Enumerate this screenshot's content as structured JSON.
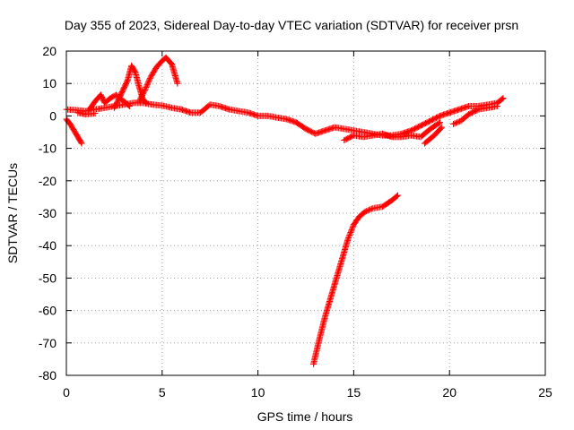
{
  "chart_data": {
    "type": "scatter",
    "title": "Day 355 of 2023, Sidereal Day-to-day VTEC variation (SDTVAR) for receiver prsn",
    "xlabel": "GPS time / hours",
    "ylabel": "SDTVAR / TECUs",
    "xlim": [
      0,
      25
    ],
    "ylim": [
      -80,
      20
    ],
    "xticks": [
      "0",
      "5",
      "10",
      "15",
      "20",
      "25"
    ],
    "yticks": [
      "20",
      "10",
      "0",
      "-10",
      "-20",
      "-30",
      "-40",
      "-50",
      "-60",
      "-70",
      "-80"
    ],
    "grid": true,
    "marker": "+",
    "series_color": "#ff0000",
    "series": [
      {
        "name": "main-track",
        "points": [
          [
            0.0,
            2.0
          ],
          [
            0.5,
            1.8
          ],
          [
            1.0,
            1.5
          ],
          [
            1.5,
            2.0
          ],
          [
            2.0,
            2.5
          ],
          [
            2.5,
            3.0
          ],
          [
            3.0,
            3.5
          ],
          [
            3.5,
            4.0
          ],
          [
            4.0,
            4.0
          ],
          [
            4.5,
            3.5
          ],
          [
            5.0,
            3.2
          ],
          [
            5.5,
            2.5
          ],
          [
            6.0,
            2.0
          ],
          [
            6.5,
            1.0
          ],
          [
            7.0,
            1.0
          ],
          [
            7.5,
            3.5
          ],
          [
            8.0,
            3.0
          ],
          [
            8.5,
            2.0
          ],
          [
            9.0,
            1.5
          ],
          [
            9.5,
            1.0
          ],
          [
            10.0,
            0.0
          ],
          [
            10.5,
            0.0
          ],
          [
            11.0,
            -0.5
          ],
          [
            11.5,
            -1.0
          ],
          [
            12.0,
            -2.0
          ],
          [
            12.5,
            -4.0
          ],
          [
            13.0,
            -5.5
          ],
          [
            13.5,
            -4.5
          ],
          [
            14.0,
            -3.5
          ],
          [
            14.5,
            -4.0
          ],
          [
            15.0,
            -4.5
          ],
          [
            15.5,
            -5.0
          ],
          [
            16.0,
            -5.5
          ],
          [
            16.5,
            -6.0
          ],
          [
            17.0,
            -6.0
          ],
          [
            17.5,
            -5.5
          ],
          [
            18.0,
            -4.5
          ],
          [
            18.5,
            -3.0
          ],
          [
            19.0,
            -1.5
          ],
          [
            19.5,
            0.0
          ],
          [
            20.0,
            1.0
          ],
          [
            20.5,
            2.0
          ],
          [
            21.0,
            3.0
          ],
          [
            21.5,
            3.0
          ],
          [
            22.0,
            3.5
          ],
          [
            22.5,
            4.0
          ],
          [
            22.8,
            5.5
          ]
        ]
      },
      {
        "name": "noisy-segment",
        "points": [
          [
            14.5,
            -7.5
          ],
          [
            15.0,
            -6.0
          ],
          [
            15.5,
            -6.5
          ],
          [
            16.0,
            -6.0
          ],
          [
            16.5,
            -5.5
          ],
          [
            17.0,
            -6.5
          ],
          [
            17.5,
            -6.5
          ],
          [
            18.0,
            -6.0
          ],
          [
            18.5,
            -6.5
          ],
          [
            19.0,
            -4.0
          ],
          [
            19.5,
            -2.0
          ]
        ]
      },
      {
        "name": "dip-after-20",
        "points": [
          [
            20.2,
            -2.5
          ],
          [
            20.6,
            -1.5
          ],
          [
            21.0,
            0.5
          ],
          [
            21.5,
            2.0
          ],
          [
            22.0,
            2.5
          ],
          [
            22.5,
            3.0
          ]
        ]
      },
      {
        "name": "arc-near-18h",
        "points": [
          [
            18.7,
            -8.5
          ],
          [
            19.2,
            -6.0
          ],
          [
            19.6,
            -3.5
          ]
        ]
      },
      {
        "name": "early-drop",
        "points": [
          [
            0.0,
            -1.0
          ],
          [
            0.2,
            -2.5
          ],
          [
            0.4,
            -4.5
          ],
          [
            0.6,
            -6.5
          ],
          [
            0.8,
            -8.5
          ]
        ]
      },
      {
        "name": "early-low",
        "points": [
          [
            0.6,
            1.0
          ],
          [
            1.0,
            0.5
          ],
          [
            1.5,
            0.8
          ]
        ]
      },
      {
        "name": "bump-near-2h",
        "points": [
          [
            1.2,
            2.0
          ],
          [
            1.5,
            4.5
          ],
          [
            1.8,
            6.5
          ],
          [
            2.0,
            4.0
          ],
          [
            2.3,
            5.5
          ],
          [
            2.6,
            6.5
          ],
          [
            3.0,
            4.5
          ],
          [
            3.3,
            3.0
          ]
        ]
      },
      {
        "name": "peak-near-3h",
        "points": [
          [
            2.5,
            2.5
          ],
          [
            2.8,
            6.0
          ],
          [
            3.0,
            8.5
          ],
          [
            3.2,
            11.0
          ],
          [
            3.4,
            15.5
          ],
          [
            3.6,
            13.5
          ],
          [
            3.8,
            9.0
          ],
          [
            4.0,
            5.0
          ],
          [
            4.2,
            4.0
          ]
        ]
      },
      {
        "name": "peak-near-5h",
        "points": [
          [
            3.8,
            4.5
          ],
          [
            4.1,
            8.0
          ],
          [
            4.4,
            12.0
          ],
          [
            4.7,
            15.0
          ],
          [
            5.0,
            17.0
          ],
          [
            5.2,
            18.0
          ],
          [
            5.5,
            16.0
          ],
          [
            5.8,
            10.0
          ]
        ]
      },
      {
        "name": "steep-rise",
        "points": [
          [
            12.9,
            -76.5
          ],
          [
            13.2,
            -69.0
          ],
          [
            13.5,
            -62.0
          ],
          [
            13.8,
            -56.0
          ],
          [
            14.1,
            -50.0
          ],
          [
            14.4,
            -44.0
          ],
          [
            14.7,
            -38.0
          ],
          [
            15.0,
            -33.5
          ],
          [
            15.3,
            -31.0
          ],
          [
            15.6,
            -29.5
          ],
          [
            16.0,
            -28.5
          ],
          [
            16.5,
            -28.0
          ],
          [
            17.0,
            -26.0
          ],
          [
            17.3,
            -24.5
          ]
        ]
      }
    ]
  }
}
